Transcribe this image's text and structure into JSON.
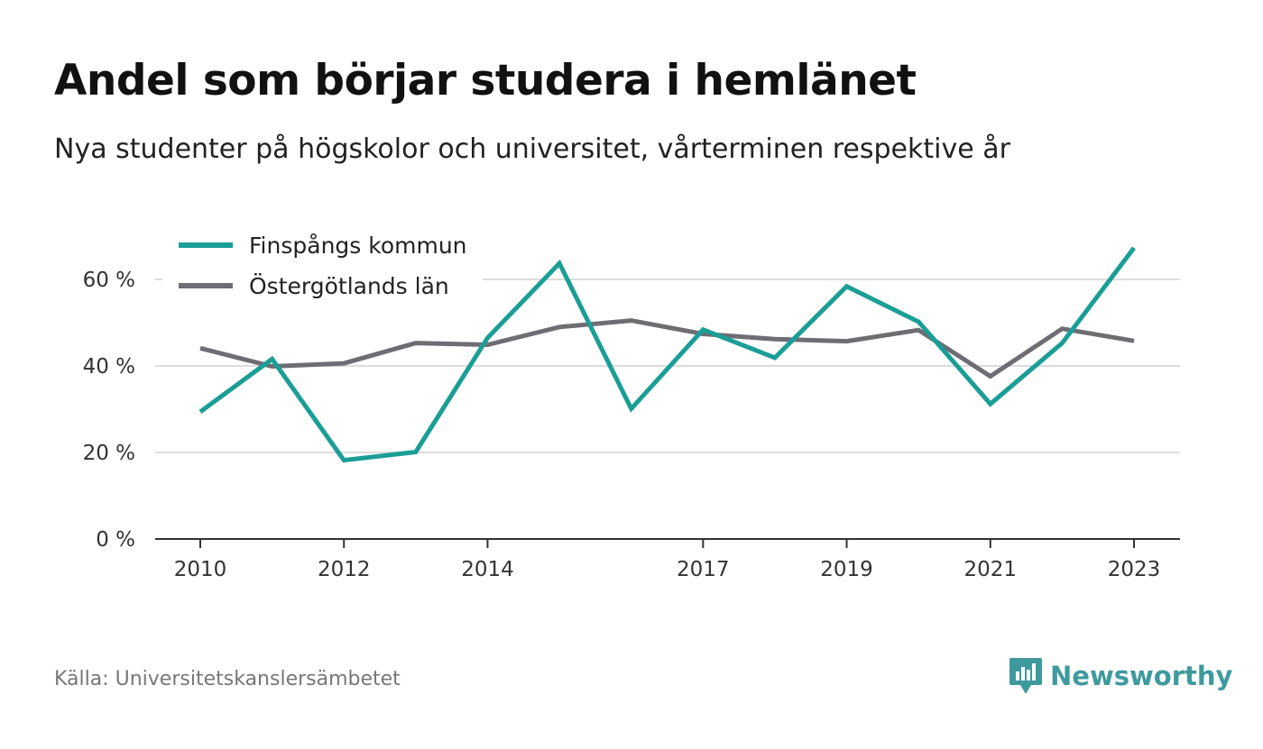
{
  "header": {
    "title": "Andel som börjar studera i hemlänet",
    "subtitle": "Nya studenter på högskolor och universitet, vårterminen respektive år"
  },
  "footer": {
    "source": "Källa: Universitetskanslersämbetet",
    "brand": "Newsworthy"
  },
  "colors": {
    "series_finspang": "#1a9e96",
    "series_ostergotland": "#6f6c74",
    "grid": "#dddddd",
    "axis": "#333333",
    "brand": "#3e9a9d"
  },
  "icons": {
    "brand_logo": "newsworthy-logo-icon"
  },
  "chart_data": {
    "type": "line",
    "title": "Andel som börjar studera i hemlänet",
    "subtitle": "Nya studenter på högskolor och universitet, vårterminen respektive år",
    "x": [
      2010,
      2011,
      2012,
      2013,
      2014,
      2015,
      2016,
      2017,
      2018,
      2019,
      2020,
      2021,
      2022,
      2023
    ],
    "x_tick_labels": [
      "2010",
      "2012",
      "2014",
      "2017",
      "2019",
      "2021",
      "2023"
    ],
    "y_ticks": [
      0,
      20,
      40,
      60
    ],
    "y_tick_labels": [
      "0 %",
      "20 %",
      "40 %",
      "60 %"
    ],
    "ylim": [
      0,
      70
    ],
    "grid": true,
    "legend_position": "top-left",
    "series": [
      {
        "name": "Finspångs kommun",
        "color": "#1a9e96",
        "values": [
          29.4,
          41.6,
          18.2,
          20.1,
          46.5,
          63.7,
          30.1,
          48.4,
          41.9,
          58.4,
          50.2,
          31.2,
          45.3,
          67.3
        ]
      },
      {
        "name": "Östergötlands län",
        "color": "#6f6c74",
        "values": [
          44.1,
          39.9,
          40.6,
          45.3,
          44.9,
          49.0,
          50.5,
          47.4,
          46.2,
          45.7,
          48.3,
          37.6,
          48.6,
          45.8
        ]
      }
    ]
  }
}
